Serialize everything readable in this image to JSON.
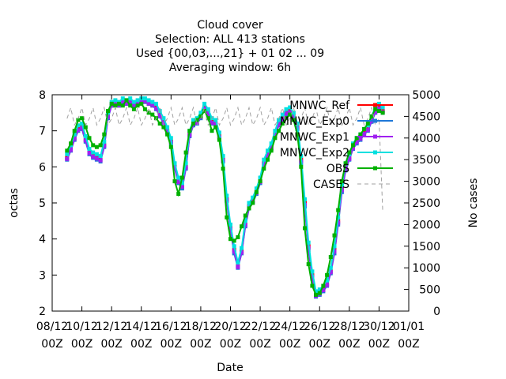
{
  "chart_data": {
    "type": "line",
    "title_lines": [
      "Cloud cover",
      "Selection: ALL    413 stations",
      "Used {00,03,...,21} + 01 02 ... 09",
      "Averaging window:  6h"
    ],
    "xlabel": "Date",
    "ylabel": "octas",
    "y2label": "No cases",
    "x_ticks": [
      {
        "x": 8,
        "line1": "08/12",
        "line2": "00Z"
      },
      {
        "x": 10,
        "line1": "10/12",
        "line2": "00Z"
      },
      {
        "x": 12,
        "line1": "12/12",
        "line2": "00Z"
      },
      {
        "x": 14,
        "line1": "14/12",
        "line2": "00Z"
      },
      {
        "x": 16,
        "line1": "16/12",
        "line2": "00Z"
      },
      {
        "x": 18,
        "line1": "18/12",
        "line2": "00Z"
      },
      {
        "x": 20,
        "line1": "20/12",
        "line2": "00Z"
      },
      {
        "x": 22,
        "line1": "22/12",
        "line2": "00Z"
      },
      {
        "x": 24,
        "line1": "24/12",
        "line2": "00Z"
      },
      {
        "x": 26,
        "line1": "26/12",
        "line2": "00Z"
      },
      {
        "x": 28,
        "line1": "28/12",
        "line2": "00Z"
      },
      {
        "x": 30,
        "line1": "30/12",
        "line2": "00Z"
      },
      {
        "x": 32,
        "line1": "01/01",
        "line2": "00Z"
      }
    ],
    "xlim": [
      8,
      32
    ],
    "ylim": [
      2,
      8
    ],
    "y_ticks": [
      2,
      3,
      4,
      5,
      6,
      7,
      8
    ],
    "y2lim": [
      0,
      5000
    ],
    "y2_ticks": [
      0,
      500,
      1000,
      1500,
      2000,
      2500,
      3000,
      3500,
      4000,
      4500,
      5000
    ],
    "grid": false,
    "legend_position": "top-right",
    "series": [
      {
        "name": "MNWC_Ref",
        "color": "#ff0000",
        "axis": "y1",
        "style": "solid",
        "marker": "square",
        "x": [
          9.0,
          9.25,
          9.5,
          9.75,
          10.0,
          10.25,
          10.5,
          10.75,
          11.0,
          11.25,
          11.5,
          11.75,
          12.0,
          12.25,
          12.5,
          12.75,
          13.0,
          13.25,
          13.5,
          13.75,
          14.0,
          14.25,
          14.5,
          14.75,
          15.0,
          15.25,
          15.5,
          15.75,
          16.0,
          16.25,
          16.5,
          16.75,
          17.0,
          17.25,
          17.5,
          17.75,
          18.0,
          18.25,
          18.5,
          18.75,
          19.0,
          19.25,
          19.5,
          19.75,
          20.0,
          20.25,
          20.5,
          20.75,
          21.0,
          21.25,
          21.5,
          21.75,
          22.0,
          22.25,
          22.5,
          22.75,
          23.0,
          23.25,
          23.5,
          23.75,
          24.0,
          24.25,
          24.5,
          24.75,
          25.0,
          25.25,
          25.5,
          25.75,
          26.0,
          26.25,
          26.5,
          26.75,
          27.0,
          27.25,
          27.5,
          27.75,
          28.0,
          28.25,
          28.5,
          28.75,
          29.0,
          29.25,
          29.5,
          29.75,
          30.0,
          30.25
        ],
        "y": [
          6.25,
          6.5,
          6.8,
          7.05,
          7.1,
          6.75,
          6.4,
          6.3,
          6.25,
          6.2,
          6.6,
          7.4,
          7.7,
          7.75,
          7.7,
          7.8,
          7.75,
          7.8,
          7.7,
          7.75,
          7.8,
          7.8,
          7.75,
          7.7,
          7.65,
          7.45,
          7.25,
          7.0,
          6.7,
          6.0,
          5.6,
          5.45,
          6.0,
          6.9,
          7.2,
          7.25,
          7.4,
          7.65,
          7.5,
          7.25,
          7.2,
          6.85,
          6.2,
          5.1,
          4.3,
          3.7,
          3.25,
          3.65,
          4.4,
          4.9,
          5.05,
          5.3,
          5.6,
          6.1,
          6.35,
          6.55,
          6.9,
          7.2,
          7.35,
          7.5,
          7.55,
          7.4,
          7.1,
          6.2,
          5.0,
          3.8,
          3.0,
          2.45,
          2.5,
          2.6,
          2.75,
          3.1,
          3.7,
          4.5,
          5.4,
          6.0,
          6.25,
          6.55,
          6.7,
          6.8,
          6.95,
          7.05,
          7.3,
          7.55,
          7.65,
          7.55
        ]
      },
      {
        "name": "MNWC_Exp0",
        "color": "#1e78d8",
        "axis": "y1",
        "style": "solid",
        "marker": "square",
        "x": [
          9.0,
          9.25,
          9.5,
          9.75,
          10.0,
          10.25,
          10.5,
          10.75,
          11.0,
          11.25,
          11.5,
          11.75,
          12.0,
          12.25,
          12.5,
          12.75,
          13.0,
          13.25,
          13.5,
          13.75,
          14.0,
          14.25,
          14.5,
          14.75,
          15.0,
          15.25,
          15.5,
          15.75,
          16.0,
          16.25,
          16.5,
          16.75,
          17.0,
          17.25,
          17.5,
          17.75,
          18.0,
          18.25,
          18.5,
          18.75,
          19.0,
          19.25,
          19.5,
          19.75,
          20.0,
          20.25,
          20.5,
          20.75,
          21.0,
          21.25,
          21.5,
          21.75,
          22.0,
          22.25,
          22.5,
          22.75,
          23.0,
          23.25,
          23.5,
          23.75,
          24.0,
          24.25,
          24.5,
          24.75,
          25.0,
          25.25,
          25.5,
          25.75,
          26.0,
          26.25,
          26.5,
          26.75,
          27.0,
          27.25,
          27.5,
          27.75,
          28.0,
          28.25,
          28.5,
          28.75,
          29.0,
          29.25,
          29.5,
          29.75,
          30.0,
          30.25
        ],
        "y": [
          6.2,
          6.45,
          6.75,
          7.0,
          7.05,
          6.7,
          6.35,
          6.25,
          6.2,
          6.15,
          6.55,
          7.35,
          7.7,
          7.75,
          7.7,
          7.8,
          7.75,
          7.8,
          7.7,
          7.75,
          7.8,
          7.8,
          7.75,
          7.7,
          7.6,
          7.4,
          7.2,
          6.95,
          6.65,
          5.95,
          5.55,
          5.4,
          5.95,
          6.85,
          7.15,
          7.2,
          7.35,
          7.6,
          7.45,
          7.2,
          7.15,
          6.8,
          6.15,
          5.05,
          4.25,
          3.6,
          3.2,
          3.6,
          4.35,
          4.85,
          5.0,
          5.25,
          5.55,
          6.05,
          6.3,
          6.5,
          6.85,
          7.15,
          7.3,
          7.45,
          7.5,
          7.35,
          7.05,
          6.1,
          4.9,
          3.7,
          2.9,
          2.4,
          2.45,
          2.55,
          2.7,
          3.05,
          3.6,
          4.4,
          5.3,
          5.9,
          6.2,
          6.5,
          6.65,
          6.75,
          6.9,
          7.0,
          7.25,
          7.5,
          7.6,
          7.5
        ]
      },
      {
        "name": "MNWC_Exp1",
        "color": "#a020f0",
        "axis": "y1",
        "style": "solid",
        "marker": "square",
        "x": [
          9.0,
          9.25,
          9.5,
          9.75,
          10.0,
          10.25,
          10.5,
          10.75,
          11.0,
          11.25,
          11.5,
          11.75,
          12.0,
          12.25,
          12.5,
          12.75,
          13.0,
          13.25,
          13.5,
          13.75,
          14.0,
          14.25,
          14.5,
          14.75,
          15.0,
          15.25,
          15.5,
          15.75,
          16.0,
          16.25,
          16.5,
          16.75,
          17.0,
          17.25,
          17.5,
          17.75,
          18.0,
          18.25,
          18.5,
          18.75,
          19.0,
          19.25,
          19.5,
          19.75,
          20.0,
          20.25,
          20.5,
          20.75,
          21.0,
          21.25,
          21.5,
          21.75,
          22.0,
          22.25,
          22.5,
          22.75,
          23.0,
          23.25,
          23.5,
          23.75,
          24.0,
          24.25,
          24.5,
          24.75,
          25.0,
          25.25,
          25.5,
          25.75,
          26.0,
          26.25,
          26.5,
          26.75,
          27.0,
          27.25,
          27.5,
          27.75,
          28.0,
          28.25,
          28.5,
          28.75,
          29.0,
          29.25,
          29.5,
          29.75,
          30.0,
          30.25
        ],
        "y": [
          6.22,
          6.47,
          6.78,
          7.02,
          7.08,
          6.73,
          6.38,
          6.28,
          6.23,
          6.18,
          6.58,
          7.38,
          7.72,
          7.76,
          7.72,
          7.82,
          7.76,
          7.82,
          7.72,
          7.76,
          7.82,
          7.82,
          7.76,
          7.72,
          7.62,
          7.42,
          7.22,
          6.98,
          6.68,
          5.98,
          5.58,
          5.45,
          5.98,
          6.88,
          7.18,
          7.22,
          7.38,
          7.62,
          7.48,
          7.22,
          7.18,
          6.82,
          6.18,
          5.08,
          4.28,
          3.65,
          3.22,
          3.62,
          4.38,
          4.88,
          5.02,
          5.28,
          5.58,
          6.08,
          6.32,
          6.52,
          6.88,
          7.18,
          7.32,
          7.48,
          7.52,
          7.38,
          7.08,
          6.15,
          4.95,
          3.75,
          2.95,
          2.42,
          2.48,
          2.58,
          2.72,
          3.08,
          3.65,
          4.45,
          5.35,
          5.95,
          6.22,
          6.52,
          6.68,
          6.78,
          6.92,
          7.02,
          7.28,
          7.52,
          7.62,
          7.52
        ]
      },
      {
        "name": "MNWC_Exp2",
        "color": "#00e0e0",
        "axis": "y1",
        "style": "solid",
        "marker": "square",
        "x": [
          9.0,
          9.25,
          9.5,
          9.75,
          10.0,
          10.25,
          10.5,
          10.75,
          11.0,
          11.25,
          11.5,
          11.75,
          12.0,
          12.25,
          12.5,
          12.75,
          13.0,
          13.25,
          13.5,
          13.75,
          14.0,
          14.25,
          14.5,
          14.75,
          15.0,
          15.25,
          15.5,
          15.75,
          16.0,
          16.25,
          16.5,
          16.75,
          17.0,
          17.25,
          17.5,
          17.75,
          18.0,
          18.25,
          18.5,
          18.75,
          19.0,
          19.25,
          19.5,
          19.75,
          20.0,
          20.25,
          20.5,
          20.75,
          21.0,
          21.25,
          21.5,
          21.75,
          22.0,
          22.25,
          22.5,
          22.75,
          23.0,
          23.25,
          23.5,
          23.75,
          24.0,
          24.25,
          24.5,
          24.75,
          25.0,
          25.25,
          25.5,
          25.75,
          26.0,
          26.25,
          26.5,
          26.75,
          27.0,
          27.25,
          27.5,
          27.75,
          28.0,
          28.25,
          28.5,
          28.75,
          29.0,
          29.25,
          29.5,
          29.75,
          30.0,
          30.25
        ],
        "y": [
          6.35,
          6.6,
          6.9,
          7.15,
          7.2,
          6.85,
          6.5,
          6.4,
          6.35,
          6.3,
          6.7,
          7.5,
          7.8,
          7.85,
          7.8,
          7.9,
          7.85,
          7.9,
          7.8,
          7.85,
          7.9,
          7.9,
          7.85,
          7.8,
          7.75,
          7.55,
          7.35,
          7.1,
          6.8,
          6.1,
          5.7,
          5.55,
          6.1,
          7.0,
          7.3,
          7.35,
          7.5,
          7.75,
          7.6,
          7.35,
          7.3,
          6.95,
          6.3,
          5.2,
          4.4,
          3.8,
          3.35,
          3.75,
          4.5,
          5.0,
          5.15,
          5.4,
          5.7,
          6.2,
          6.45,
          6.65,
          7.0,
          7.3,
          7.45,
          7.6,
          7.65,
          7.5,
          7.2,
          6.3,
          5.1,
          3.9,
          3.1,
          2.55,
          2.6,
          2.7,
          2.85,
          3.2,
          3.8,
          4.6,
          5.5,
          6.1,
          6.35,
          6.65,
          6.8,
          6.9,
          7.05,
          7.15,
          7.4,
          7.65,
          7.75,
          7.65
        ]
      },
      {
        "name": "OBS",
        "color": "#00b000",
        "axis": "y1",
        "style": "solid",
        "marker": "square",
        "x": [
          9.0,
          9.25,
          9.5,
          9.75,
          10.0,
          10.25,
          10.5,
          10.75,
          11.0,
          11.25,
          11.5,
          11.75,
          12.0,
          12.25,
          12.5,
          12.75,
          13.0,
          13.25,
          13.5,
          13.75,
          14.0,
          14.25,
          14.5,
          14.75,
          15.0,
          15.25,
          15.5,
          15.75,
          16.0,
          16.25,
          16.5,
          16.75,
          17.0,
          17.25,
          17.5,
          17.75,
          18.0,
          18.25,
          18.5,
          18.75,
          19.0,
          19.25,
          19.5,
          19.75,
          20.0,
          20.25,
          20.5,
          20.75,
          21.0,
          21.25,
          21.5,
          21.75,
          22.0,
          22.25,
          22.5,
          22.75,
          23.0,
          23.25,
          23.5,
          23.75,
          24.0,
          24.25,
          24.5,
          24.75,
          25.0,
          25.25,
          25.5,
          25.75,
          26.0,
          26.25,
          26.5,
          26.75,
          27.0,
          27.25,
          27.5,
          27.75,
          28.0,
          28.25,
          28.5,
          28.75,
          29.0,
          29.25,
          29.5,
          29.75,
          30.0,
          30.25
        ],
        "y": [
          6.45,
          6.65,
          7.0,
          7.3,
          7.35,
          7.1,
          6.8,
          6.6,
          6.55,
          6.6,
          6.9,
          7.55,
          7.75,
          7.7,
          7.75,
          7.7,
          7.85,
          7.7,
          7.6,
          7.7,
          7.75,
          7.6,
          7.5,
          7.45,
          7.35,
          7.2,
          7.1,
          6.9,
          6.55,
          5.6,
          5.25,
          5.7,
          6.4,
          7.0,
          7.2,
          7.3,
          7.4,
          7.55,
          7.35,
          7.0,
          7.1,
          6.75,
          5.95,
          4.6,
          4.0,
          3.95,
          4.05,
          4.35,
          4.65,
          4.85,
          5.0,
          5.3,
          5.6,
          5.95,
          6.2,
          6.45,
          6.8,
          7.0,
          7.2,
          7.35,
          7.45,
          7.3,
          6.9,
          6.0,
          4.3,
          3.3,
          2.7,
          2.45,
          2.5,
          2.7,
          3.0,
          3.5,
          4.1,
          4.8,
          5.6,
          6.1,
          6.4,
          6.6,
          6.8,
          6.9,
          7.05,
          7.2,
          7.4,
          7.6,
          7.55,
          7.5
        ]
      },
      {
        "name": "CASES",
        "color": "#a0a0a0",
        "axis": "y2",
        "style": "dashed",
        "marker": "none",
        "x": [
          9.0,
          9.25,
          9.5,
          9.75,
          10.0,
          10.25,
          10.5,
          10.75,
          11.0,
          11.25,
          11.5,
          11.75,
          12.0,
          12.25,
          12.5,
          12.75,
          13.0,
          13.25,
          13.5,
          13.75,
          14.0,
          14.25,
          14.5,
          14.75,
          15.0,
          15.25,
          15.5,
          15.75,
          16.0,
          16.25,
          16.5,
          16.75,
          17.0,
          17.25,
          17.5,
          17.75,
          18.0,
          18.25,
          18.5,
          18.75,
          19.0,
          19.25,
          19.5,
          19.75,
          20.0,
          20.25,
          20.5,
          20.75,
          21.0,
          21.25,
          21.5,
          21.75,
          22.0,
          22.25,
          22.5,
          22.75,
          23.0,
          23.25,
          23.5,
          23.75,
          24.0,
          24.25,
          24.5,
          24.75,
          25.0,
          25.25,
          25.5,
          25.75,
          26.0,
          26.25,
          26.5,
          26.75,
          27.0,
          27.25,
          27.5,
          27.75,
          28.0,
          28.25,
          28.5,
          28.75,
          29.0,
          29.25,
          29.5,
          29.75,
          30.0,
          30.25
        ],
        "y": [
          4450,
          4700,
          4300,
          4450,
          4700,
          4300,
          4450,
          4700,
          4300,
          4450,
          4700,
          4300,
          4450,
          4700,
          4300,
          4450,
          4700,
          4300,
          4450,
          4700,
          4300,
          4450,
          4700,
          4300,
          4450,
          4700,
          4300,
          4450,
          4700,
          4300,
          4450,
          4700,
          4300,
          4450,
          4700,
          4300,
          4450,
          4700,
          4300,
          4450,
          4700,
          4300,
          4450,
          4700,
          4300,
          4450,
          4700,
          4300,
          4450,
          4700,
          4300,
          4450,
          4700,
          4300,
          4450,
          4700,
          4300,
          4450,
          4700,
          4300,
          4450,
          4700,
          4300,
          4450,
          4700,
          4300,
          4450,
          4700,
          4300,
          4450,
          4700,
          4300,
          4450,
          4700,
          4300,
          4450,
          4700,
          4300,
          4450,
          4700,
          4300,
          4450,
          4700,
          4300,
          4450,
          2300
        ]
      }
    ]
  }
}
